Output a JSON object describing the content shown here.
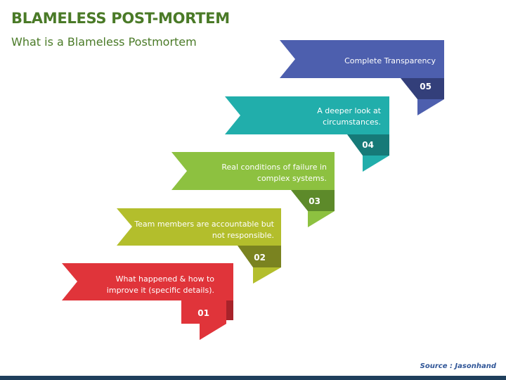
{
  "header": {
    "title": "BLAMELESS POST-MORTEM",
    "subtitle": "What is a Blameless Postmortem"
  },
  "steps": [
    {
      "number": "01",
      "text": "What happened & how to improve it (specific details).",
      "color": "#e0343a",
      "dark": "#a8232a"
    },
    {
      "number": "02",
      "text": "Team members are accountable but not responsible.",
      "color": "#b3be2c",
      "dark": "#7a8320"
    },
    {
      "number": "03",
      "text": "Real conditions of failure in complex systems.",
      "color": "#8dc140",
      "dark": "#5d8a2a"
    },
    {
      "number": "04",
      "text": "A deeper look at circumstances.",
      "color": "#21aeab",
      "dark": "#167a78"
    },
    {
      "number": "05",
      "text": "Complete Transparency",
      "color": "#4d5fae",
      "dark": "#333f7a"
    }
  ],
  "footer": {
    "source": "Source : Jasonhand"
  }
}
